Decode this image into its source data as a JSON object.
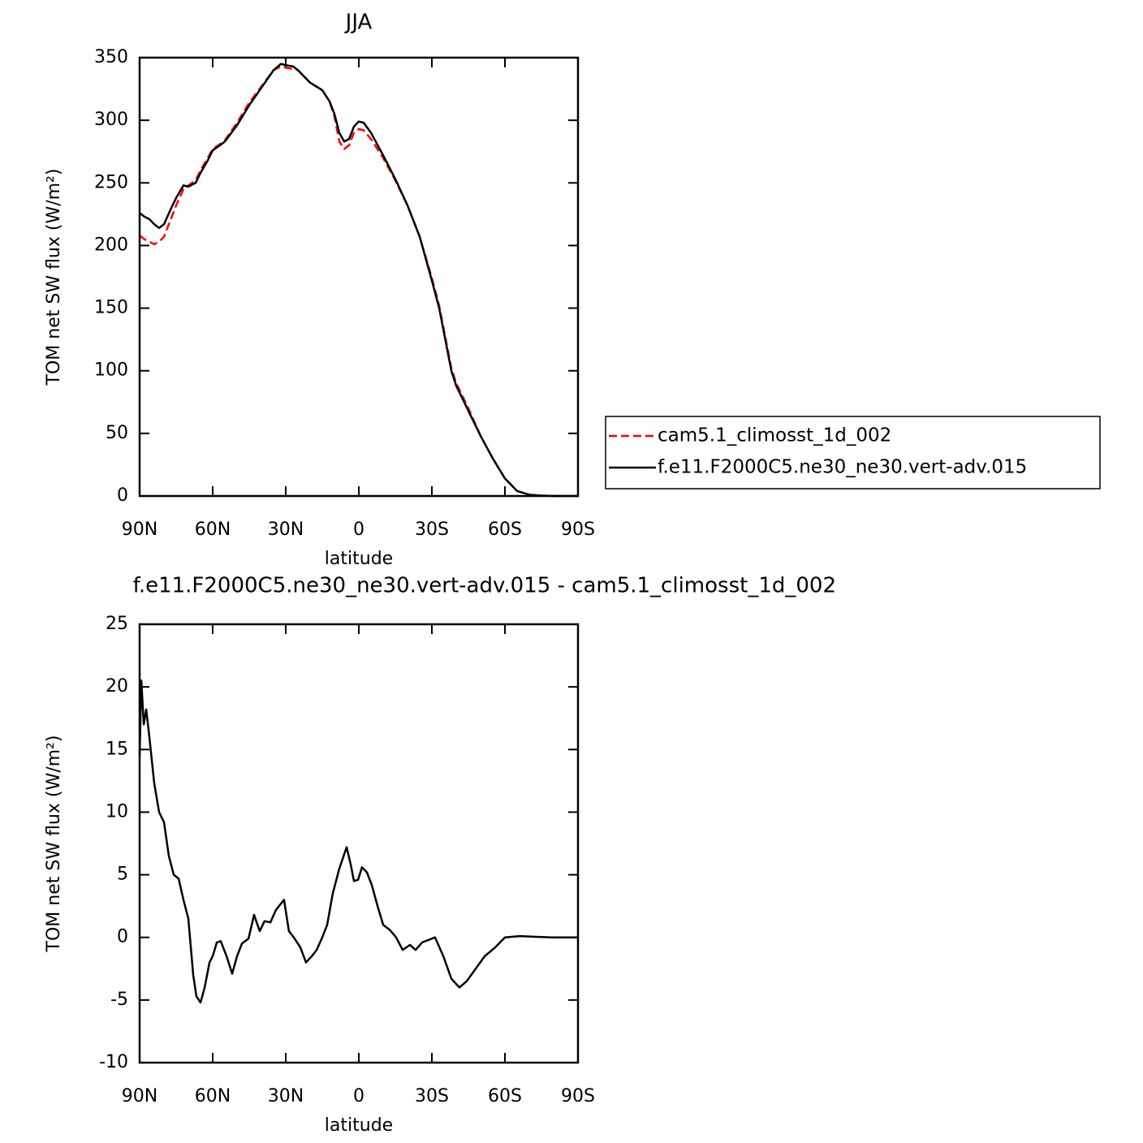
{
  "chart_data": [
    {
      "type": "line",
      "title": "JJA",
      "xlabel": "latitude",
      "ylabel": "TOM net SW flux (W/m²)",
      "xlim": [
        90,
        -90
      ],
      "ylim": [
        0,
        350
      ],
      "xticks": [
        {
          "value": 90,
          "label": "90N"
        },
        {
          "value": 60,
          "label": "60N"
        },
        {
          "value": 30,
          "label": "30N"
        },
        0,
        {
          "value": -30,
          "label": "30S"
        },
        {
          "value": -60,
          "label": "60S"
        },
        {
          "value": -90,
          "label": "90S"
        }
      ],
      "yticks": [
        0,
        50,
        100,
        150,
        200,
        250,
        300,
        350
      ],
      "legend": "right",
      "x": [
        90,
        88,
        86,
        84,
        82,
        80,
        77,
        75,
        72,
        70,
        67,
        65,
        62,
        60,
        57,
        55,
        50,
        45,
        40,
        35,
        32,
        30,
        27,
        25,
        20,
        15,
        12,
        10,
        8,
        6,
        4,
        2,
        0,
        -2,
        -5,
        -10,
        -15,
        -20,
        -25,
        -30,
        -33,
        -38,
        -40,
        -45,
        -50,
        -55,
        -60,
        -65,
        -70,
        -75,
        -80,
        -85,
        -90
      ],
      "series": [
        {
          "name": "cam5.1_climosst_1d_002",
          "color": "#ff0000",
          "linestyle": "dashed",
          "values": [
            208,
            205,
            203,
            201,
            203,
            207,
            222,
            232,
            245,
            248,
            252,
            260,
            270,
            277,
            281,
            284,
            298,
            314,
            327,
            340,
            343,
            342,
            341,
            340,
            330,
            324,
            315,
            303,
            283,
            277,
            280,
            290,
            293,
            292,
            285,
            270,
            252,
            232,
            207,
            174,
            152,
            102,
            90,
            70,
            48,
            30,
            14,
            4,
            1,
            0.3,
            0,
            0,
            0
          ]
        },
        {
          "name": "f.e11.F2000C5.ne30_ne30.vert-adv.015",
          "color": "#000000",
          "linestyle": "solid",
          "values": [
            226,
            223,
            221,
            217,
            214,
            217,
            230,
            238,
            248,
            247,
            250,
            258,
            268,
            276,
            280,
            283,
            296,
            312,
            326,
            340,
            345,
            344,
            343,
            340,
            330,
            324,
            315,
            305,
            290,
            283,
            285,
            295,
            299,
            298,
            290,
            272,
            253,
            232,
            207,
            172,
            150,
            100,
            88,
            68,
            48,
            30,
            14,
            4,
            1,
            0.3,
            0,
            0,
            0
          ]
        }
      ]
    },
    {
      "type": "line",
      "title": "f.e11.F2000C5.ne30_ne30.vert-adv.015 - cam5.1_climosst_1d_002",
      "xlabel": "latitude",
      "ylabel": "TOM net SW flux (W/m²)",
      "xlim": [
        90,
        -90
      ],
      "ylim": [
        -10,
        25
      ],
      "xticks": [
        {
          "value": 90,
          "label": "90N"
        },
        {
          "value": 60,
          "label": "60N"
        },
        {
          "value": 30,
          "label": "30N"
        },
        0,
        {
          "value": -30,
          "label": "30S"
        },
        {
          "value": -60,
          "label": "60S"
        },
        {
          "value": -90,
          "label": "90S"
        }
      ],
      "yticks": [
        -10,
        -5,
        0,
        5,
        10,
        15,
        20,
        25
      ],
      "x": [
        90,
        89.3,
        88.3,
        87.3,
        86,
        84,
        82,
        80,
        78,
        76,
        74,
        72,
        70,
        68,
        66.7,
        65,
        63.3,
        61.3,
        60,
        58.3,
        56.7,
        54.3,
        52,
        50,
        48,
        45.3,
        43,
        40.7,
        38.7,
        36.3,
        34,
        30.7,
        28.7,
        26.7,
        24,
        21.7,
        19.3,
        17.3,
        15,
        13,
        10.7,
        8,
        5,
        3.3,
        2,
        0.3,
        -1.3,
        -3.3,
        -5.3,
        -7.7,
        -10,
        -12.7,
        -15.3,
        -18,
        -21,
        -23.3,
        -26,
        -28.7,
        -31.3,
        -34.7,
        -38,
        -41.3,
        -44.3,
        -48,
        -51.7,
        -56,
        -60,
        -66,
        -72.7,
        -79.3,
        -90
      ],
      "series": [
        {
          "color": "#000000",
          "linestyle": "solid",
          "values": [
            14.5,
            20.5,
            17,
            18.2,
            16,
            12.3,
            10,
            9.2,
            6.5,
            5,
            4.7,
            3,
            1.5,
            -3,
            -4.7,
            -5.2,
            -4,
            -2,
            -1.5,
            -0.4,
            -0.3,
            -1.5,
            -2.9,
            -1.5,
            -0.5,
            -0.1,
            1.8,
            0.5,
            1.3,
            1.2,
            2.2,
            3,
            0.5,
            0,
            -0.8,
            -2,
            -1.5,
            -1,
            0,
            1,
            3.5,
            5.5,
            7.2,
            5.8,
            4.5,
            4.6,
            5.6,
            5.2,
            4.2,
            2.5,
            1,
            0.6,
            0,
            -1,
            -0.6,
            -1,
            -0.4,
            -0.2,
            0,
            -1.5,
            -3.3,
            -4,
            -3.5,
            -2.5,
            -1.5,
            -0.8,
            0,
            0.1,
            0.05,
            0,
            0
          ]
        }
      ]
    }
  ]
}
